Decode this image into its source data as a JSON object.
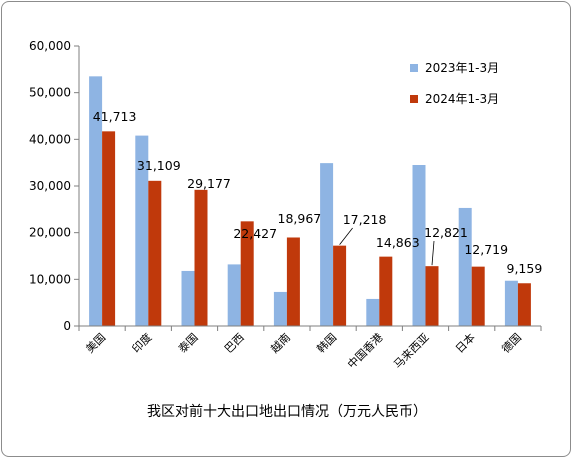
{
  "chart_data": {
    "type": "bar",
    "title": "我区对前十大出口地出口情况（万元人民币）",
    "categories": [
      "美国",
      "印度",
      "泰国",
      "巴西",
      "越南",
      "韩国",
      "中国香港",
      "马来西亚",
      "日本",
      "德国"
    ],
    "series": [
      {
        "name": "2023年1-3月",
        "color": "#8eb4e3",
        "values": [
          53500,
          40800,
          11800,
          13200,
          7300,
          34900,
          5800,
          34500,
          25300,
          9700
        ]
      },
      {
        "name": "2024年1-3月",
        "color": "#c0390b",
        "values": [
          41713,
          31109,
          29177,
          22427,
          18967,
          17218,
          14863,
          12821,
          12719,
          9159
        ]
      }
    ],
    "data_labels": [
      "41,713",
      "31,109",
      "29,177",
      "22,427",
      "18,967",
      "17,218",
      "14,863",
      "12,821",
      "12,719",
      "9,159"
    ],
    "ylim": [
      0,
      60000
    ],
    "yticks": [
      "0",
      "10,000",
      "20,000",
      "30,000",
      "40,000",
      "50,000",
      "60,000"
    ],
    "xlabel": "",
    "ylabel": "",
    "legend": "top-right",
    "grid": false
  }
}
